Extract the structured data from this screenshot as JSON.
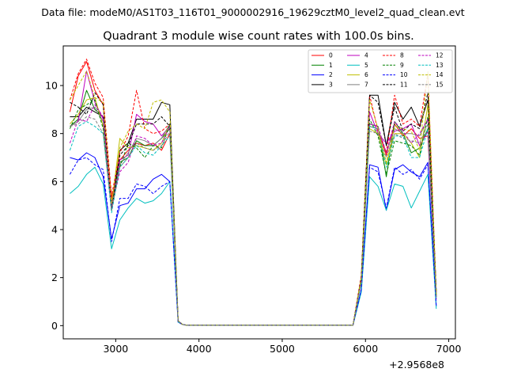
{
  "suptitle": "Data file: modeM0/AS1T03_116T01_9000002916_19629cztM0_level2_quad_clean.evt",
  "chart_data": {
    "type": "line",
    "title": "Quadrant 3 module wise count rates with 100.0s bins.",
    "xlabel": "",
    "ylabel": "",
    "x_offset_text": "+2.9568e8",
    "xlim": [
      2370,
      7080
    ],
    "ylim": [
      -0.55,
      11.65
    ],
    "xticks": [
      3000,
      4000,
      5000,
      6000,
      7000
    ],
    "xtick_labels": [
      "3000",
      "4000",
      "5000",
      "6000",
      "7000"
    ],
    "yticks": [
      0,
      2,
      4,
      6,
      8,
      10
    ],
    "ytick_labels": [
      "0",
      "2",
      "4",
      "6",
      "8",
      "10"
    ],
    "legend_location": "top-right",
    "legend_columns": 4,
    "grid": false,
    "x": [
      2450,
      2550,
      2650,
      2750,
      2850,
      2950,
      3050,
      3150,
      3250,
      3350,
      3450,
      3550,
      3650,
      3750,
      3800,
      3850,
      3950,
      4050,
      4250,
      4450,
      4650,
      4850,
      5050,
      5250,
      5450,
      5650,
      5850,
      5950,
      6050,
      6150,
      6250,
      6350,
      6450,
      6550,
      6650,
      6750,
      6850
    ],
    "series": [
      {
        "name": "0",
        "color": "#ff0000",
        "dashed": false,
        "values": [
          8.9,
          10.4,
          11.0,
          9.8,
          9.2,
          5.3,
          6.9,
          7.3,
          7.6,
          7.5,
          7.6,
          7.3,
          8.0,
          0.2,
          0.05,
          0.02,
          0.02,
          0.02,
          0.02,
          0.02,
          0.02,
          0.02,
          0.02,
          0.02,
          0.02,
          0.02,
          0.02,
          2.0,
          8.3,
          8.2,
          7.1,
          8.4,
          7.9,
          8.2,
          7.8,
          7.9,
          1.2
        ]
      },
      {
        "name": "1",
        "color": "#008000",
        "dashed": false,
        "values": [
          8.3,
          8.6,
          9.8,
          9.0,
          8.7,
          4.8,
          6.8,
          7.0,
          7.7,
          7.5,
          7.5,
          7.8,
          8.2,
          0.2,
          0.05,
          0.02,
          0.02,
          0.02,
          0.02,
          0.02,
          0.02,
          0.02,
          0.02,
          0.02,
          0.02,
          0.02,
          0.02,
          1.9,
          8.4,
          8.3,
          6.2,
          8.5,
          8.0,
          7.2,
          7.4,
          8.2,
          1.2
        ]
      },
      {
        "name": "2",
        "color": "#0000ff",
        "dashed": false,
        "values": [
          7.0,
          6.9,
          7.2,
          7.0,
          6.2,
          3.6,
          5.0,
          5.1,
          5.7,
          5.7,
          6.1,
          6.3,
          6.0,
          0.15,
          0.05,
          0.02,
          0.02,
          0.02,
          0.02,
          0.02,
          0.02,
          0.02,
          0.02,
          0.02,
          0.02,
          0.02,
          0.02,
          1.5,
          6.7,
          6.6,
          4.8,
          6.5,
          6.7,
          6.4,
          6.2,
          6.8,
          0.8
        ]
      },
      {
        "name": "3",
        "color": "#000000",
        "dashed": false,
        "values": [
          8.7,
          8.7,
          9.1,
          8.9,
          8.7,
          4.9,
          7.3,
          7.6,
          8.6,
          8.6,
          8.6,
          9.3,
          9.2,
          0.2,
          0.05,
          0.02,
          0.02,
          0.02,
          0.02,
          0.02,
          0.02,
          0.02,
          0.02,
          0.02,
          0.02,
          0.02,
          0.02,
          2.0,
          9.6,
          9.6,
          7.5,
          9.3,
          8.6,
          9.1,
          8.3,
          9.4,
          1.4
        ]
      },
      {
        "name": "4",
        "color": "#bf00bf",
        "dashed": false,
        "values": [
          8.3,
          8.5,
          10.6,
          9.3,
          8.6,
          5.1,
          6.9,
          7.1,
          8.8,
          8.5,
          8.4,
          7.9,
          8.3,
          0.2,
          0.05,
          0.02,
          0.02,
          0.02,
          0.02,
          0.02,
          0.02,
          0.02,
          0.02,
          0.02,
          0.02,
          0.02,
          0.02,
          2.0,
          8.9,
          8.0,
          7.6,
          8.1,
          8.2,
          8.4,
          7.5,
          8.1,
          1.1
        ]
      },
      {
        "name": "5",
        "color": "#00bfbf",
        "dashed": false,
        "values": [
          5.5,
          5.8,
          6.3,
          6.6,
          5.9,
          3.2,
          4.4,
          4.9,
          5.3,
          5.1,
          5.2,
          5.5,
          6.0,
          0.15,
          0.05,
          0.02,
          0.02,
          0.02,
          0.02,
          0.02,
          0.02,
          0.02,
          0.02,
          0.02,
          0.02,
          0.02,
          0.02,
          1.4,
          6.2,
          5.8,
          4.8,
          5.9,
          5.8,
          4.9,
          5.6,
          6.3,
          0.7
        ]
      },
      {
        "name": "6",
        "color": "#bfbf00",
        "dashed": false,
        "values": [
          8.4,
          8.8,
          9.4,
          9.5,
          8.3,
          5.0,
          7.8,
          7.4,
          7.5,
          7.4,
          7.3,
          7.6,
          8.4,
          0.2,
          0.05,
          0.02,
          0.02,
          0.02,
          0.02,
          0.02,
          0.02,
          0.02,
          0.02,
          0.02,
          0.02,
          0.02,
          0.02,
          2.0,
          8.2,
          8.0,
          6.7,
          8.0,
          8.0,
          7.6,
          7.0,
          9.2,
          1.3
        ]
      },
      {
        "name": "7",
        "color": "#808080",
        "dashed": false,
        "values": [
          8.3,
          8.5,
          9.0,
          9.1,
          8.5,
          5.0,
          6.7,
          7.2,
          7.8,
          7.7,
          7.5,
          7.8,
          8.4,
          0.2,
          0.05,
          0.02,
          0.02,
          0.02,
          0.02,
          0.02,
          0.02,
          0.02,
          0.02,
          0.02,
          0.02,
          0.02,
          0.02,
          1.9,
          8.3,
          8.2,
          7.2,
          8.2,
          8.0,
          8.0,
          7.9,
          8.6,
          1.2
        ]
      },
      {
        "name": "8",
        "color": "#ff0000",
        "dashed": true,
        "values": [
          9.4,
          10.5,
          11.1,
          10.1,
          9.5,
          5.4,
          7.2,
          7.9,
          9.8,
          8.2,
          8.0,
          8.1,
          8.4,
          0.2,
          0.05,
          0.02,
          0.02,
          0.02,
          0.02,
          0.02,
          0.02,
          0.02,
          0.02,
          0.02,
          0.02,
          0.02,
          0.02,
          2.1,
          9.6,
          8.1,
          7.2,
          9.6,
          8.4,
          8.6,
          8.3,
          10.5,
          1.3
        ]
      },
      {
        "name": "9",
        "color": "#008000",
        "dashed": true,
        "values": [
          8.2,
          9.0,
          9.2,
          9.4,
          8.2,
          4.9,
          6.6,
          7.6,
          7.4,
          7.0,
          7.5,
          7.4,
          8.4,
          0.2,
          0.05,
          0.02,
          0.02,
          0.02,
          0.02,
          0.02,
          0.02,
          0.02,
          0.02,
          0.02,
          0.02,
          0.02,
          0.02,
          1.9,
          8.6,
          7.9,
          6.3,
          7.7,
          7.6,
          7.5,
          7.1,
          8.7,
          1.2
        ]
      },
      {
        "name": "10",
        "color": "#0000ff",
        "dashed": true,
        "values": [
          6.3,
          6.9,
          7.0,
          6.7,
          6.5,
          3.5,
          5.3,
          5.3,
          5.9,
          5.8,
          5.5,
          5.8,
          6.0,
          0.15,
          0.05,
          0.02,
          0.02,
          0.02,
          0.02,
          0.02,
          0.02,
          0.02,
          0.02,
          0.02,
          0.02,
          0.02,
          0.02,
          1.5,
          6.6,
          6.4,
          4.9,
          6.6,
          6.3,
          6.5,
          6.1,
          6.7,
          0.8
        ]
      },
      {
        "name": "11",
        "color": "#000000",
        "dashed": true,
        "values": [
          9.3,
          9.1,
          8.8,
          9.7,
          9.2,
          4.8,
          7.1,
          7.5,
          8.4,
          8.4,
          8.4,
          8.7,
          8.3,
          0.2,
          0.05,
          0.02,
          0.02,
          0.02,
          0.02,
          0.02,
          0.02,
          0.02,
          0.02,
          0.02,
          0.02,
          0.02,
          0.02,
          2.0,
          9.6,
          9.3,
          7.5,
          9.1,
          8.1,
          8.4,
          8.2,
          9.7,
          1.4
        ]
      },
      {
        "name": "12",
        "color": "#bf00bf",
        "dashed": true,
        "values": [
          7.6,
          8.6,
          8.5,
          9.2,
          8.7,
          4.9,
          6.4,
          6.8,
          7.9,
          7.8,
          7.5,
          7.6,
          8.3,
          0.2,
          0.05,
          0.02,
          0.02,
          0.02,
          0.02,
          0.02,
          0.02,
          0.02,
          0.02,
          0.02,
          0.02,
          0.02,
          0.02,
          1.9,
          8.4,
          8.3,
          7.2,
          8.5,
          8.1,
          7.6,
          8.0,
          8.6,
          1.2
        ]
      },
      {
        "name": "13",
        "color": "#00bfbf",
        "dashed": true,
        "values": [
          7.3,
          8.3,
          8.5,
          8.3,
          8.0,
          4.7,
          6.6,
          7.0,
          7.5,
          7.2,
          7.1,
          7.5,
          7.9,
          0.2,
          0.05,
          0.02,
          0.02,
          0.02,
          0.02,
          0.02,
          0.02,
          0.02,
          0.02,
          0.02,
          0.02,
          0.02,
          0.02,
          1.8,
          8.3,
          8.2,
          6.6,
          7.9,
          7.9,
          7.0,
          7.0,
          8.2,
          1.1
        ]
      },
      {
        "name": "14",
        "color": "#bfbf00",
        "dashed": true,
        "values": [
          9.4,
          10.0,
          10.6,
          9.5,
          9.3,
          5.1,
          7.4,
          8.1,
          8.4,
          8.2,
          9.3,
          9.4,
          8.9,
          0.2,
          0.05,
          0.02,
          0.02,
          0.02,
          0.02,
          0.02,
          0.02,
          0.02,
          0.02,
          0.02,
          0.02,
          0.02,
          0.02,
          2.0,
          9.4,
          8.2,
          6.8,
          8.3,
          8.2,
          8.1,
          7.3,
          10.6,
          1.3
        ]
      },
      {
        "name": "15",
        "color": "#808080",
        "dashed": true,
        "values": [
          8.3,
          8.4,
          8.7,
          8.6,
          8.0,
          4.8,
          6.6,
          7.0,
          7.6,
          7.4,
          7.3,
          7.5,
          8.1,
          0.2,
          0.05,
          0.02,
          0.02,
          0.02,
          0.02,
          0.02,
          0.02,
          0.02,
          0.02,
          0.02,
          0.02,
          0.02,
          0.02,
          1.8,
          8.1,
          8.0,
          7.0,
          8.0,
          7.8,
          7.7,
          7.6,
          8.4,
          1.2
        ]
      }
    ]
  }
}
